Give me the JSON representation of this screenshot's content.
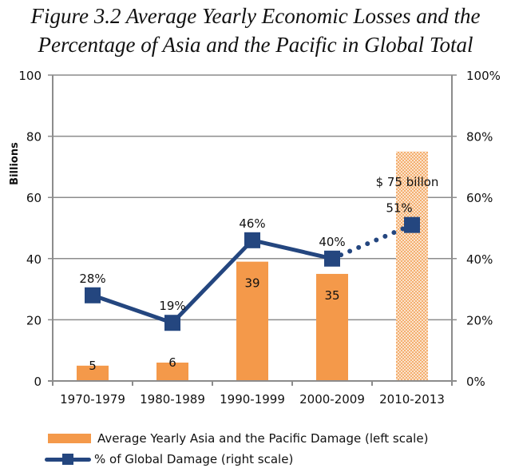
{
  "chart_data": {
    "type": "bar",
    "title": "Figure 3.2 Average Yearly Economic Losses and the Percentage of Asia and the Pacific in Global Total",
    "title_lines": [
      "Figure 3.2 Average Yearly Economic Losses and the",
      "Percentage of Asia and the Pacific in Global Total"
    ],
    "categories": [
      "1970-1979",
      "1980-1989",
      "1990-1999",
      "2000-2009",
      "2010-2013"
    ],
    "ylabel": "Billions",
    "ylim": [
      0,
      100
    ],
    "yticks": [
      0,
      20,
      40,
      60,
      80,
      100
    ],
    "y2lim": [
      0,
      100
    ],
    "y2ticks": [
      "0%",
      "20%",
      "40%",
      "60%",
      "80%",
      "100%"
    ],
    "grid": true,
    "series": [
      {
        "name": "Average Yearly Asia and the Pacific Damage (left scale)",
        "type": "bar",
        "axis": "left",
        "values": [
          5,
          6,
          39,
          35,
          75
        ],
        "data_labels": [
          "5",
          "6",
          "39",
          "35",
          "$ 75 billon"
        ],
        "patterned": [
          false,
          false,
          false,
          false,
          true
        ],
        "color": "#F4994A"
      },
      {
        "name": "% of Global Damage (right scale)",
        "type": "line",
        "axis": "right",
        "values": [
          28,
          19,
          46,
          40,
          51
        ],
        "data_labels": [
          "28%",
          "19%",
          "46%",
          "40%",
          "51%"
        ],
        "dotted_last_segment": true,
        "color": "#24467F"
      }
    ],
    "legend": {
      "placement": "bottom-left",
      "entries": [
        "Average Yearly Asia and the Pacific Damage (left scale)",
        "% of Global Damage (right scale)"
      ]
    }
  }
}
